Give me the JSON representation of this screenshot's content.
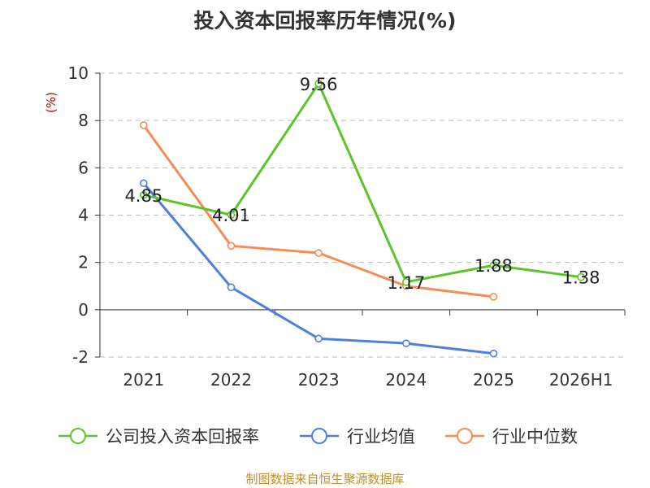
{
  "title": "投入资本回报率历年情况(%)",
  "source": "制图数据来自恒生聚源数据库",
  "chart_data": {
    "type": "line",
    "title": "投入资本回报率历年情况(%)",
    "ylabel": "(%)",
    "categories": [
      "2021",
      "2022",
      "2023",
      "2024",
      "2025",
      "2026H1"
    ],
    "ylim": [
      -2,
      10
    ],
    "yticks": [
      -2,
      0,
      2,
      4,
      6,
      8,
      10
    ],
    "grid": true,
    "legend_position": "bottom",
    "series": [
      {
        "name": "公司投入资本回报率",
        "color": "#5cc42b",
        "values": [
          4.85,
          4.01,
          9.56,
          1.17,
          1.88,
          1.38
        ],
        "labels": [
          "4.85",
          "4.01",
          "9.56",
          "1.17",
          "1.88",
          "1.38"
        ]
      },
      {
        "name": "行业均值",
        "color": "#4e7fdb",
        "values": [
          5.35,
          0.95,
          -1.22,
          -1.42,
          -1.85,
          null
        ]
      },
      {
        "name": "行业中位数",
        "color": "#f58c54",
        "values": [
          7.8,
          2.7,
          2.4,
          1.0,
          0.55,
          null
        ]
      }
    ]
  }
}
